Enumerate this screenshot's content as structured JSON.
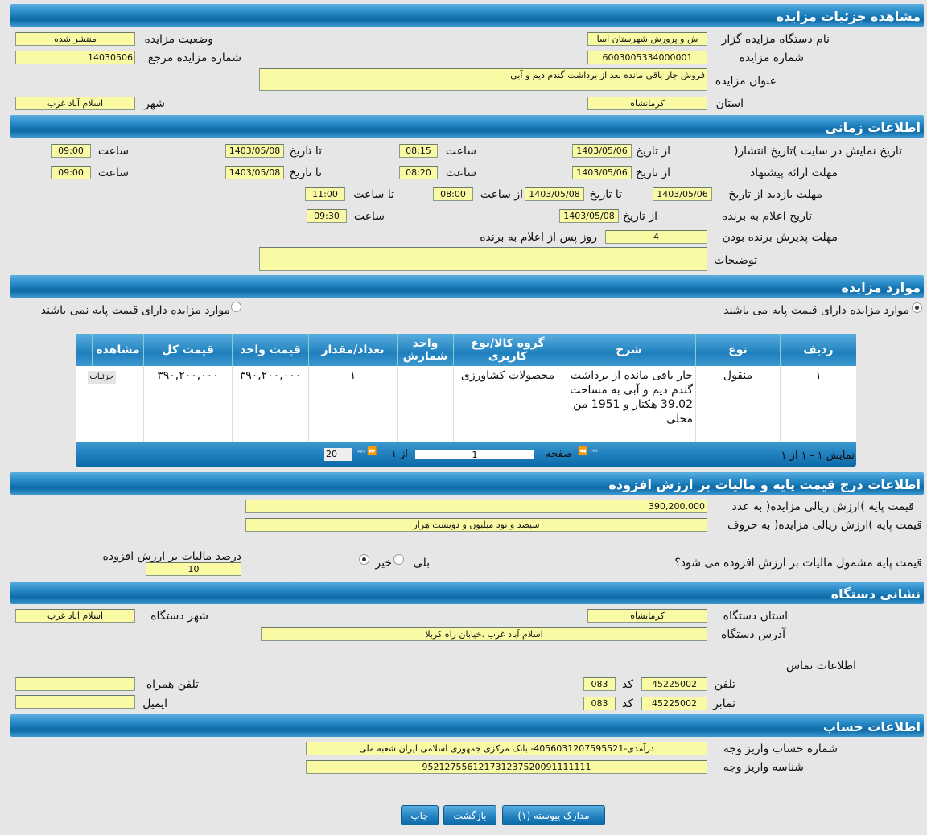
{
  "sections": {
    "details": "مشاهده جزئیات مزایده",
    "time": "اطلاعات زمانی",
    "items": "موارد مزایده",
    "price": "اطلاعات درج قیمت پایه و مالیات بر ارزش افزوده",
    "address": "نشانی دستگاه",
    "account": "اطلاعات حساب"
  },
  "details": {
    "org_label": "نام دستگاه مزایده گزار",
    "org_value": "ش و پرورش شهرستان اسا",
    "status_label": "وضعیت مزایده",
    "status_value": "منتشر شده",
    "number_label": "شماره مزایده",
    "number_value": "6003005334000001",
    "ref_label": "شماره مزایده مرجع",
    "ref_value": "14030506",
    "title_label": "عنوان مزایده",
    "title_value": "فروش جار باقی مانده بعد از برداشت گندم دیم و آبی",
    "province_label": "استان",
    "province_value": "کرمانشاه",
    "city_label": "شهر",
    "city_value": "اسلام آباد غرب"
  },
  "time": {
    "publish_label": "تاریخ نمایش در سایت )تاریخ انتشار(",
    "offer_label": "مهلت ارائه پیشنهاد",
    "visit_label": "مهلت بازدید  از تاریخ",
    "announce_label": "تاریخ اعلام به برنده",
    "accept_label": "مهلت پذیرش برنده بودن",
    "notes_label": "توضیحات",
    "from_date": "از تاریخ",
    "to_date": "تا تاریخ",
    "hour": "ساعت",
    "from_hour": "از ساعت",
    "to_hour": "تا ساعت",
    "publish_from": "1403/05/06",
    "publish_from_time": "08:15",
    "publish_to": "1403/05/08",
    "publish_to_time": "09:00",
    "offer_from": "1403/05/06",
    "offer_from_time": "08:20",
    "offer_to": "1403/05/08",
    "offer_to_time": "09:00",
    "visit_from": "1403/05/06",
    "visit_to": "1403/05/08",
    "visit_from_time": "08:00",
    "visit_to_time": "11:00",
    "announce_from": "1403/05/08",
    "announce_time": "09:30",
    "accept_days": "4",
    "accept_suffix": "روز پس از اعلام به برنده",
    "notes_value": ""
  },
  "items": {
    "radio_has_price": "موارد مزایده دارای قیمت پایه می باشند",
    "radio_no_price": "موارد مزایده دارای قیمت پایه نمی باشند",
    "columns": [
      "ردیف",
      "نوع",
      "شرح",
      "گروه کالا/نوع کاربری",
      "واحد شمارش",
      "تعداد/مقدار",
      "قیمت واحد",
      "قیمت کل",
      "مشاهده"
    ],
    "rows": [
      {
        "index": "۱",
        "type": "منقول",
        "desc": "جار باقی مانده از برداشت گندم دیم و آبی به مساحت 39.02 هکتار و 1951 من محلی",
        "group": "محصولات کشاورزی",
        "unit": "",
        "qty": "۱",
        "unit_price": "۳۹۰,۲۰۰,۰۰۰",
        "total": "۳۹۰,۲۰۰,۰۰۰",
        "view": "جزئیات"
      }
    ],
    "pager": {
      "summary": "نمایش ۱ - ۱ از ۱",
      "page_label": "صفحه",
      "page": "1",
      "of": "از ۱",
      "page_size": "20"
    }
  },
  "price": {
    "num_label": "قیمت پایه )ارزش ریالی مزایده( به عدد",
    "num_value": "390,200,000",
    "words_label": "قیمت پایه )ارزش ریالی مزایده( به حروف",
    "words_value": "سیصد و نود میلیون و دویست هزار",
    "vat_question": "قیمت پایه مشمول مالیات بر ارزش افزوده می شود؟",
    "yes": "بلی",
    "no": "خیر",
    "vat_selected": "no",
    "vat_percent_label": "درصد مالیات بر ارزش افزوده",
    "vat_percent": "10"
  },
  "address": {
    "province_label": "استان دستگاه",
    "province_value": "کرمانشاه",
    "city_label": "شهر دستگاه",
    "city_value": "اسلام آباد غرب",
    "addr_label": "آدرس دستگاه",
    "addr_value": "اسلام آباد غرب ،خیابان راه کربلا",
    "contact_label": "اطلاعات تماس",
    "phone_label": "تلفن",
    "phone_value": "45225002",
    "code_label": "کد",
    "phone_code": "083",
    "fax_label": "نمابر",
    "fax_value": "45225002",
    "fax_code": "083",
    "mobile_label": "تلفن همراه",
    "mobile_value": "",
    "email_label": "ایمیل",
    "email_value": ""
  },
  "account": {
    "acc_label": "شماره حساب واریز وجه",
    "acc_value": "درآمدی-4056031207595521- بانک مرکزی جمهوری اسلامی ایران شعبه ملی",
    "id_label": "شناسه واریز وجه",
    "id_value": "952127556121731237520091111111"
  },
  "buttons": {
    "print": "چاپ",
    "back": "بازگشت",
    "attachments": "مدارک پیوسته (۱)"
  }
}
